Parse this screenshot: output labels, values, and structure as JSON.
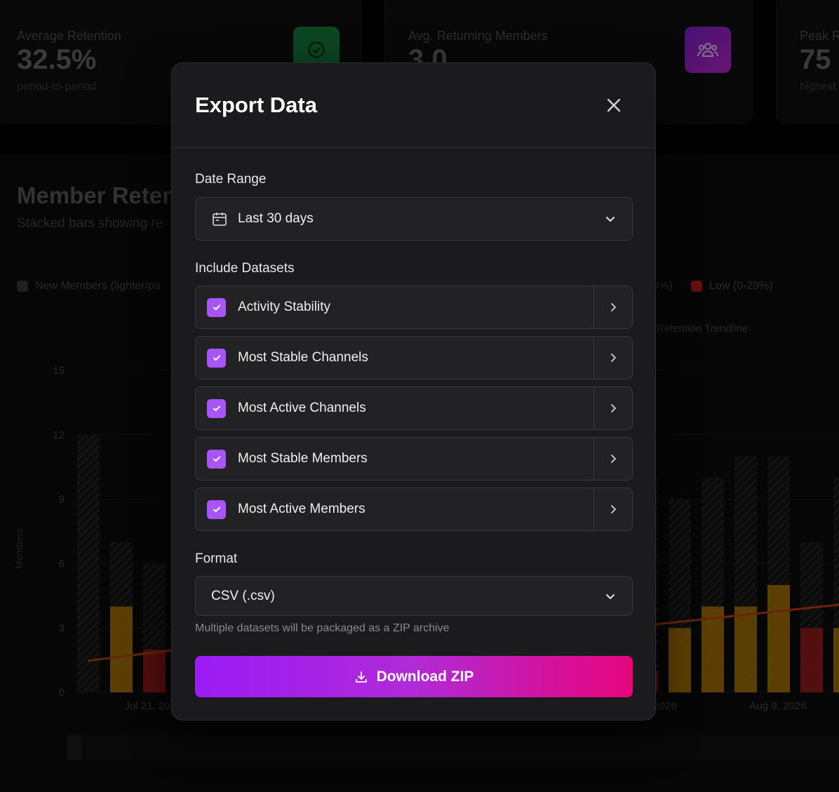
{
  "stats": [
    {
      "label": "Average Retention",
      "value": "32.5%",
      "sub": "period-to-period",
      "icon": "check-circle-icon",
      "color": "#16a34a"
    },
    {
      "label": "Avg. Returning Members",
      "value": "3.0",
      "sub": "",
      "icon": "users-icon",
      "color": "#9333ea"
    },
    {
      "label": "Peak R",
      "value": "75",
      "sub": "highest",
      "icon": "",
      "color": ""
    }
  ],
  "background_chart": {
    "title": "Member Reten",
    "subtitle": "Stacked bars showing re",
    "legend": [
      {
        "label": "New Members (lighter/pa",
        "color": "#4a4a4a"
      },
      {
        "label": "9%)",
        "color": ""
      },
      {
        "label": "Low (0-29%)",
        "color": "#b91c1c"
      }
    ],
    "trendline_label": "Retention Trendline"
  },
  "chart_data": {
    "type": "bar",
    "ylabel": "Members",
    "yticks": [
      "15",
      "12",
      "9",
      "6",
      "3",
      "0"
    ],
    "ylim": [
      0,
      15
    ],
    "xtick_labels": [
      "Jul 21, 20",
      "2026",
      "Aug 9, 2026"
    ],
    "left_bars": [
      {
        "total": 12,
        "retained": 0,
        "tier": "none"
      },
      {
        "total": 7,
        "retained": 4,
        "tier": "medium"
      },
      {
        "total": 6,
        "retained": 2,
        "tier": "low"
      }
    ],
    "right_bars": [
      {
        "total": 10,
        "retained": 1,
        "tier": "low"
      },
      {
        "total": 9,
        "retained": 3,
        "tier": "medium"
      },
      {
        "total": 10,
        "retained": 4,
        "tier": "medium"
      },
      {
        "total": 11,
        "retained": 4,
        "tier": "medium"
      },
      {
        "total": 11,
        "retained": 5,
        "tier": "medium"
      },
      {
        "total": 7,
        "retained": 3,
        "tier": "low"
      },
      {
        "total": 10,
        "retained": 3,
        "tier": "medium"
      }
    ],
    "trend_color": "#c2410c",
    "medium_color": "#ca8a04",
    "low_color": "#b91c1c"
  },
  "modal": {
    "title": "Export Data",
    "date_range_label": "Date Range",
    "date_range_value": "Last 30 days",
    "datasets_label": "Include Datasets",
    "datasets": [
      {
        "label": "Activity Stability",
        "checked": true
      },
      {
        "label": "Most Stable Channels",
        "checked": true
      },
      {
        "label": "Most Active Channels",
        "checked": true
      },
      {
        "label": "Most Stable Members",
        "checked": true
      },
      {
        "label": "Most Active Members",
        "checked": true
      }
    ],
    "format_label": "Format",
    "format_value": "CSV (.csv)",
    "hint": "Multiple datasets will be packaged as a ZIP archive",
    "download_label": "Download ZIP",
    "accent": "#a855f7"
  }
}
